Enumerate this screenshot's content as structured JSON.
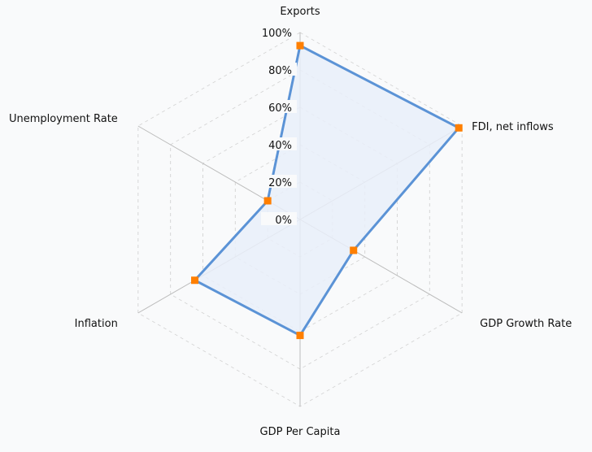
{
  "chart_data": {
    "type": "radar",
    "axes": [
      "Exports",
      "FDI, net inflows",
      "GDP Growth Rate",
      "GDP Per Capita",
      "Inflation",
      "Unemployment Rate"
    ],
    "values": [
      93,
      98,
      33,
      62,
      65,
      20
    ],
    "rlim": [
      0,
      100
    ],
    "ticks": [
      "0%",
      "20%",
      "40%",
      "60%",
      "80%",
      "100%"
    ],
    "grid": true,
    "legend": "none",
    "colors": {
      "line": "#5b93d6",
      "fill": "#e9eff9",
      "marker": "#ff7f00",
      "spoke": "#bcbcbc",
      "grid": "#d6d6d6"
    }
  }
}
